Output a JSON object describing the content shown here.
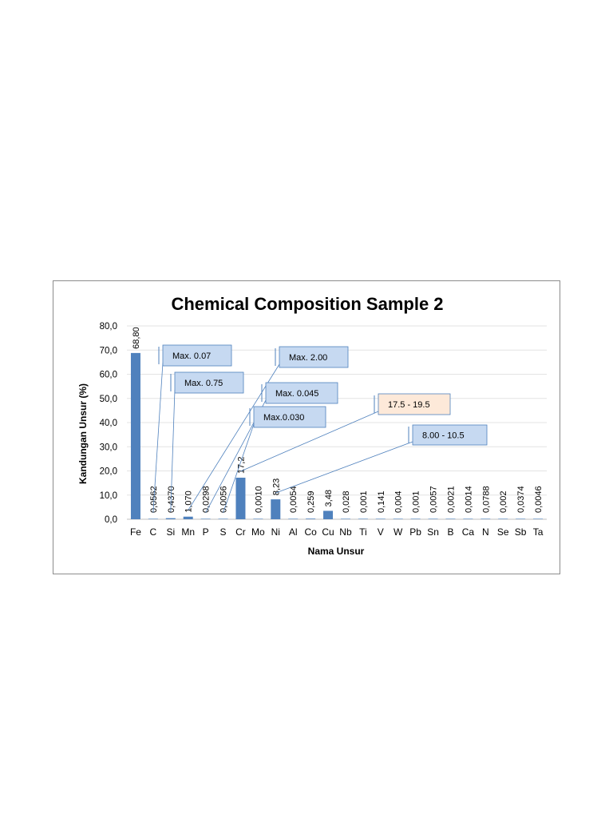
{
  "chart_data": {
    "type": "bar",
    "title": "Chemical Composition Sample 2",
    "xlabel": "Nama Unsur",
    "ylabel": "Kandungan Unsur (%)",
    "ylim": [
      0,
      80
    ],
    "yticks": [
      "0,0",
      "10,0",
      "20,0",
      "30,0",
      "40,0",
      "50,0",
      "60,0",
      "70,0",
      "80,0"
    ],
    "grid": true,
    "bar_color": "#4f81bd",
    "categories": [
      "Fe",
      "C",
      "Si",
      "Mn",
      "P",
      "S",
      "Cr",
      "Mo",
      "Ni",
      "Al",
      "Co",
      "Cu",
      "Nb",
      "Ti",
      "V",
      "W",
      "Pb",
      "Sn",
      "B",
      "Ca",
      "N",
      "Se",
      "Sb",
      "Ta"
    ],
    "values": [
      68.8,
      0.0562,
      0.437,
      1.07,
      0.0298,
      0.0056,
      17.2,
      0.001,
      8.23,
      0.0054,
      0.259,
      3.48,
      0.028,
      0.001,
      0.141,
      0.004,
      0.001,
      0.0057,
      0.0021,
      0.0014,
      0.0788,
      0.002,
      0.0374,
      0.0046
    ],
    "data_labels": [
      "68,80",
      "0,0562",
      "0,4370",
      "1,070",
      "0,0298",
      "0,0056",
      "17,2",
      "0,0010",
      "8,23",
      "0,0054",
      "0,259",
      "3,48",
      "0,028",
      "0,001",
      "0,141",
      "0,004",
      "0,001",
      "0,0057",
      "0,0021",
      "0,0014",
      "0,0788",
      "0,002",
      "0,0374",
      "0,0046"
    ],
    "annotations": [
      {
        "text": "Max. 0.07",
        "target": "C",
        "fill": "#c6d9f1",
        "stroke": "#4f81bd"
      },
      {
        "text": "Max. 0.75",
        "target": "Si",
        "fill": "#c6d9f1",
        "stroke": "#4f81bd"
      },
      {
        "text": "Max. 2.00",
        "target": "Mn",
        "fill": "#c6d9f1",
        "stroke": "#4f81bd"
      },
      {
        "text": "Max. 0.045",
        "target": "P",
        "fill": "#c6d9f1",
        "stroke": "#4f81bd"
      },
      {
        "text": "Max.0.030",
        "target": "S",
        "fill": "#c6d9f1",
        "stroke": "#4f81bd"
      },
      {
        "text": "17.5 - 19.5",
        "target": "Cr",
        "fill": "#fde9d9",
        "stroke": "#4f81bd"
      },
      {
        "text": "8.00 - 10.5",
        "target": "Ni",
        "fill": "#c6d9f1",
        "stroke": "#4f81bd"
      }
    ]
  }
}
